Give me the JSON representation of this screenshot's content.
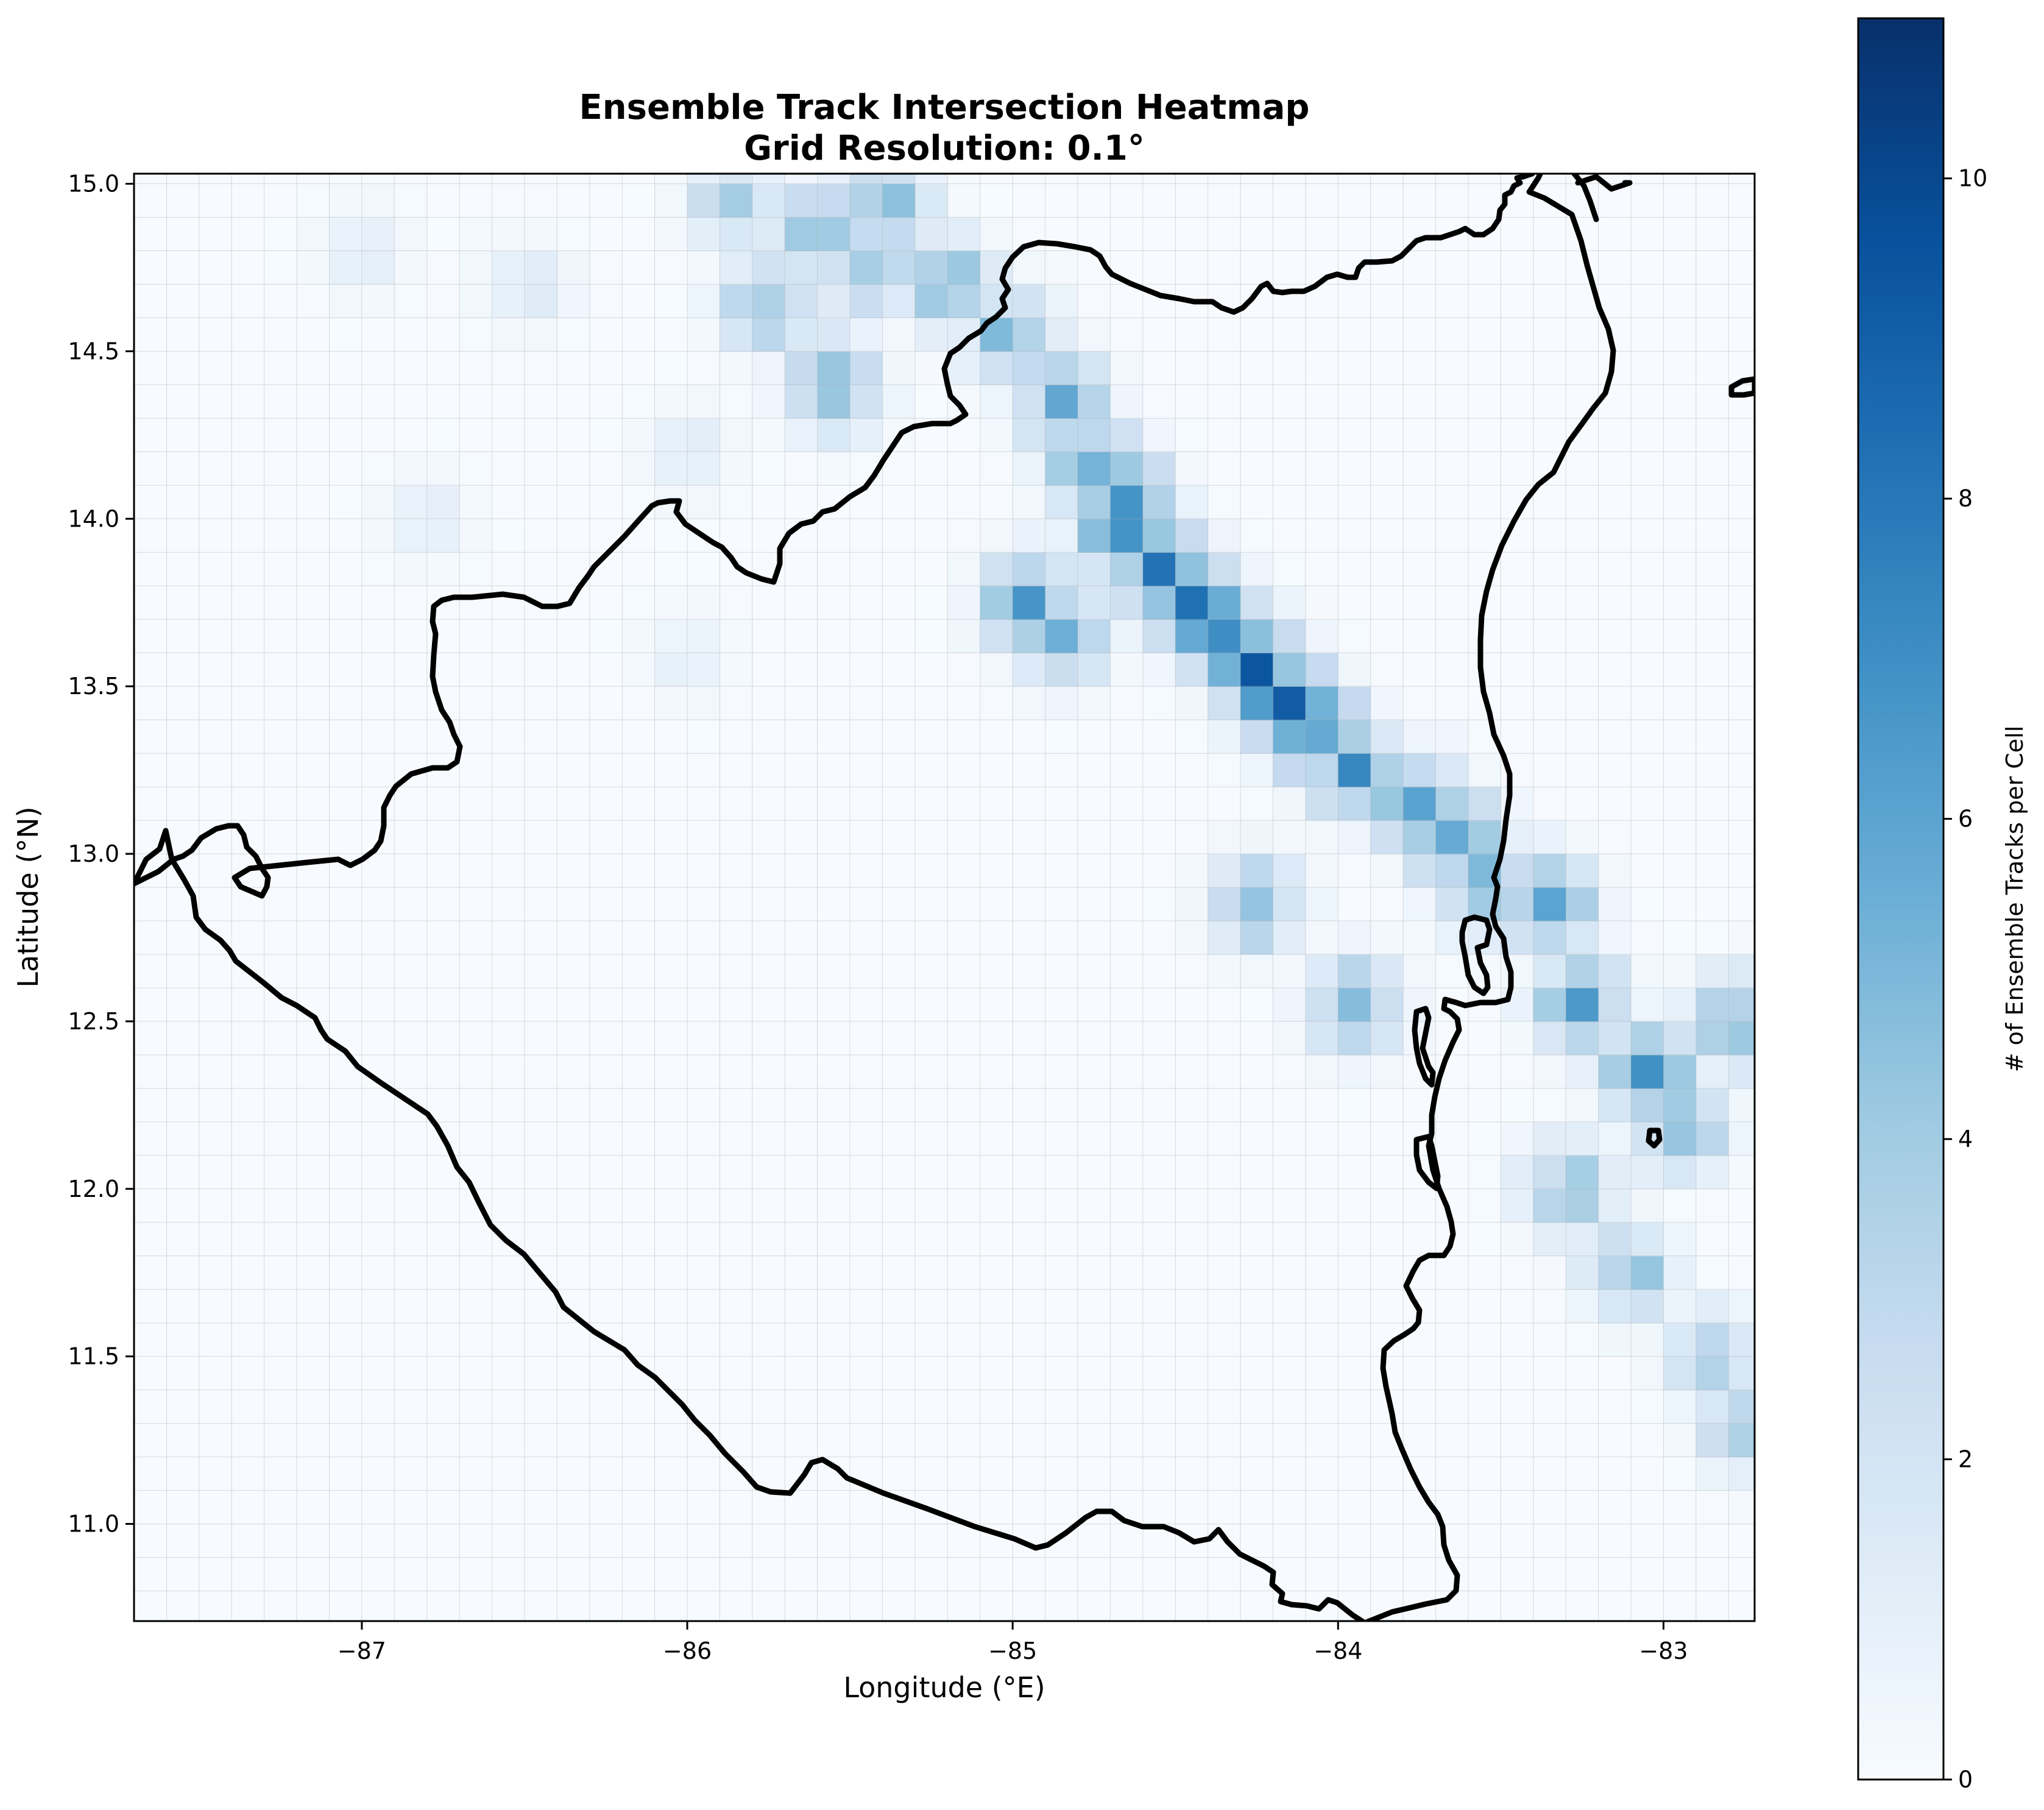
{
  "chart_data": {
    "type": "heatmap",
    "title_lines": [
      "Ensemble Track Intersection Heatmap",
      "Grid Resolution: 0.1°"
    ],
    "xlabel": "Longitude (°E)",
    "ylabel": "Latitude (°N)",
    "xlim": [
      -87.7,
      -82.72
    ],
    "ylim": [
      10.71,
      15.03
    ],
    "xticks": [
      -87,
      -86,
      -85,
      -84,
      -83
    ],
    "xtick_labels": [
      "−87",
      "−86",
      "−85",
      "−84",
      "−83"
    ],
    "yticks": [
      11.0,
      11.5,
      12.0,
      12.5,
      13.0,
      13.5,
      14.0,
      14.5,
      15.0
    ],
    "ytick_labels": [
      "11.0",
      "11.5",
      "12.0",
      "12.5",
      "13.0",
      "13.5",
      "14.0",
      "14.5",
      "15.0"
    ],
    "grid": true,
    "grid_resolution_deg": 0.1,
    "colormap": "Blues",
    "colorbar": {
      "label": "# of Ensemble Tracks per Cell",
      "range": [
        0,
        11
      ],
      "ticks": [
        0,
        2,
        4,
        6,
        8,
        10
      ],
      "tick_labels": [
        "0",
        "2",
        "4",
        "6",
        "8",
        "10"
      ]
    },
    "track_hotspots": [
      {
        "lon": -85.85,
        "lat": 14.95,
        "count": 3.5
      },
      {
        "lon": -85.6,
        "lat": 14.85,
        "count": 4.5
      },
      {
        "lon": -85.4,
        "lat": 14.95,
        "count": 4.8
      },
      {
        "lon": -85.45,
        "lat": 14.75,
        "count": 4.8
      },
      {
        "lon": -85.2,
        "lat": 14.7,
        "count": 4.5
      },
      {
        "lon": -85.75,
        "lat": 14.65,
        "count": 4.5
      },
      {
        "lon": -85.55,
        "lat": 14.4,
        "count": 4.8
      },
      {
        "lon": -85.0,
        "lat": 14.55,
        "count": 5.0
      },
      {
        "lon": -84.85,
        "lat": 14.35,
        "count": 5.0
      },
      {
        "lon": -84.75,
        "lat": 14.15,
        "count": 5.8
      },
      {
        "lon": -84.65,
        "lat": 14.05,
        "count": 6.2
      },
      {
        "lon": -84.65,
        "lat": 13.95,
        "count": 6.8
      },
      {
        "lon": -84.55,
        "lat": 13.85,
        "count": 7.0
      },
      {
        "lon": -84.45,
        "lat": 13.75,
        "count": 7.5
      },
      {
        "lon": -84.35,
        "lat": 13.65,
        "count": 8.5
      },
      {
        "lon": -84.25,
        "lat": 13.55,
        "count": 9.0
      },
      {
        "lon": -84.15,
        "lat": 13.45,
        "count": 7.8
      },
      {
        "lon": -84.05,
        "lat": 13.35,
        "count": 7.0
      },
      {
        "lon": -83.95,
        "lat": 13.25,
        "count": 6.2
      },
      {
        "lon": -83.75,
        "lat": 13.15,
        "count": 6.2
      },
      {
        "lon": -83.65,
        "lat": 13.05,
        "count": 6.0
      },
      {
        "lon": -83.55,
        "lat": 12.9,
        "count": 5.5
      },
      {
        "lon": -83.35,
        "lat": 12.85,
        "count": 5.5
      },
      {
        "lon": -83.25,
        "lat": 12.55,
        "count": 5.5
      },
      {
        "lon": -83.05,
        "lat": 12.35,
        "count": 6.2
      },
      {
        "lon": -82.95,
        "lat": 12.2,
        "count": 5.5
      },
      {
        "lon": -82.78,
        "lat": 12.5,
        "count": 5.0
      },
      {
        "lon": -84.95,
        "lat": 13.75,
        "count": 5.8
      },
      {
        "lon": -84.85,
        "lat": 13.65,
        "count": 5.0
      },
      {
        "lon": -84.25,
        "lat": 12.85,
        "count": 4.5
      },
      {
        "lon": -83.95,
        "lat": 12.55,
        "count": 4.5
      },
      {
        "lon": -83.3,
        "lat": 12.0,
        "count": 4.2
      },
      {
        "lon": -83.1,
        "lat": 11.75,
        "count": 4.0
      },
      {
        "lon": -82.85,
        "lat": 11.5,
        "count": 3.5
      },
      {
        "lon": -82.75,
        "lat": 11.3,
        "count": 4.0
      },
      {
        "lon": -87.0,
        "lat": 14.8,
        "count": 1.2
      },
      {
        "lon": -86.5,
        "lat": 14.7,
        "count": 1.5
      },
      {
        "lon": -86.0,
        "lat": 14.2,
        "count": 1.2
      },
      {
        "lon": -86.8,
        "lat": 14.0,
        "count": 1.0
      },
      {
        "lon": -86.0,
        "lat": 13.6,
        "count": 1.0
      }
    ]
  }
}
